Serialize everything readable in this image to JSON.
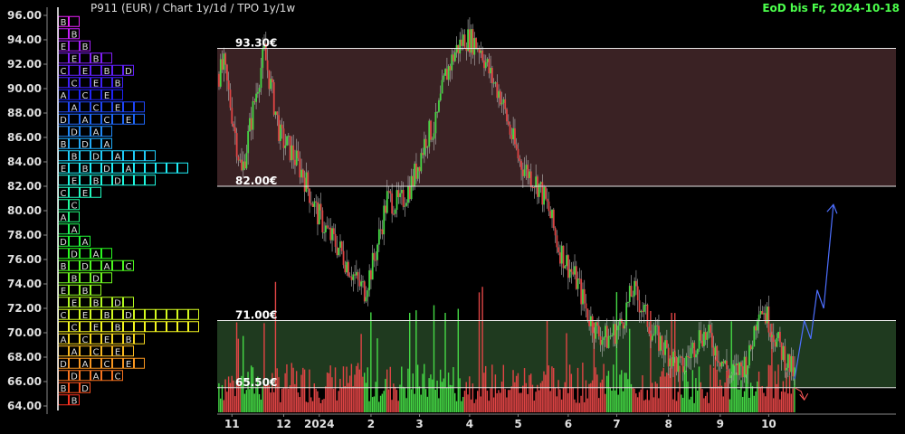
{
  "header": {
    "title": "P911 (EUR) /  Chart 1y/1d / TPO 1y/1w",
    "date": "EoD bis Fr, 2024-10-18"
  },
  "chart_data": {
    "type": "candlestick",
    "ylim": [
      63.5,
      96.5
    ],
    "y_ticks": [
      64,
      66,
      68,
      70,
      72,
      74,
      76,
      78,
      80,
      82,
      84,
      86,
      88,
      90,
      92,
      94,
      96
    ],
    "y_tick_labels": [
      "64.00",
      "66.00",
      "68.00",
      "70.00",
      "72.00",
      "74.00",
      "76.00",
      "78.00",
      "80.00",
      "82.00",
      "84.00",
      "86.00",
      "88.00",
      "90.00",
      "92.00",
      "94.00",
      "96.00"
    ],
    "x_labels": [
      {
        "text": "11",
        "day": 8
      },
      {
        "text": "12",
        "day": 40
      },
      {
        "text": "2024",
        "day": 62
      },
      {
        "text": "2",
        "day": 94
      },
      {
        "text": "3",
        "day": 124
      },
      {
        "text": "4",
        "day": 155
      },
      {
        "text": "5",
        "day": 185
      },
      {
        "text": "6",
        "day": 216
      },
      {
        "text": "7",
        "day": 246
      },
      {
        "text": "8",
        "day": 278
      },
      {
        "text": "9",
        "day": 310
      },
      {
        "text": "10",
        "day": 340
      }
    ],
    "levels": [
      {
        "value": 93.3,
        "label": "93.30€"
      },
      {
        "value": 82.0,
        "label": "82.00€"
      },
      {
        "value": 71.0,
        "label": "71.00€"
      },
      {
        "value": 65.5,
        "label": "65.50€"
      }
    ],
    "zones": [
      {
        "from": 82.0,
        "to": 93.3,
        "color": "#3a2224"
      },
      {
        "from": 65.5,
        "to": 71.0,
        "color": "#1f3a1f"
      }
    ],
    "close_path": [
      [
        0,
        91.2
      ],
      [
        3,
        91.8
      ],
      [
        8,
        88.0
      ],
      [
        14,
        83.0
      ],
      [
        18,
        86.0
      ],
      [
        24,
        90.5
      ],
      [
        28,
        93.0
      ],
      [
        33,
        89.5
      ],
      [
        38,
        86.0
      ],
      [
        44,
        85.0
      ],
      [
        52,
        83.0
      ],
      [
        60,
        80.0
      ],
      [
        68,
        78.0
      ],
      [
        74,
        77.0
      ],
      [
        80,
        75.5
      ],
      [
        86,
        74.0
      ],
      [
        90,
        73.5
      ],
      [
        96,
        76.0
      ],
      [
        104,
        81.0
      ],
      [
        112,
        80.5
      ],
      [
        120,
        82.5
      ],
      [
        128,
        86.0
      ],
      [
        134,
        87.0
      ],
      [
        140,
        91.0
      ],
      [
        146,
        93.0
      ],
      [
        152,
        94.2
      ],
      [
        158,
        93.8
      ],
      [
        162,
        93.3
      ],
      [
        168,
        91.0
      ],
      [
        174,
        89.5
      ],
      [
        180,
        86.5
      ],
      [
        186,
        84.0
      ],
      [
        192,
        83.0
      ],
      [
        198,
        82.0
      ],
      [
        204,
        80.0
      ],
      [
        210,
        77.0
      ],
      [
        216,
        75.5
      ],
      [
        222,
        74.0
      ],
      [
        228,
        71.5
      ],
      [
        234,
        70.0
      ],
      [
        240,
        69.5
      ],
      [
        248,
        70.5
      ],
      [
        256,
        73.5
      ],
      [
        262,
        72.0
      ],
      [
        268,
        70.0
      ],
      [
        274,
        69.0
      ],
      [
        280,
        68.0
      ],
      [
        286,
        67.0
      ],
      [
        292,
        68.5
      ],
      [
        298,
        70.0
      ],
      [
        304,
        69.5
      ],
      [
        310,
        68.0
      ],
      [
        316,
        66.5
      ],
      [
        322,
        67.0
      ],
      [
        328,
        68.0
      ],
      [
        334,
        72.5
      ],
      [
        340,
        71.0
      ],
      [
        346,
        69.0
      ],
      [
        352,
        67.5
      ],
      [
        356,
        66.5
      ]
    ],
    "x_days": 357,
    "forecast_path": [
      [
        356,
        66.2
      ],
      [
        362,
        71.0
      ],
      [
        366,
        69.5
      ],
      [
        370,
        73.5
      ],
      [
        374,
        72.0
      ],
      [
        380,
        80.5
      ]
    ],
    "projection_path": [
      [
        356,
        65.5
      ],
      [
        360,
        65.2
      ],
      [
        362,
        64.5
      ]
    ]
  }
}
